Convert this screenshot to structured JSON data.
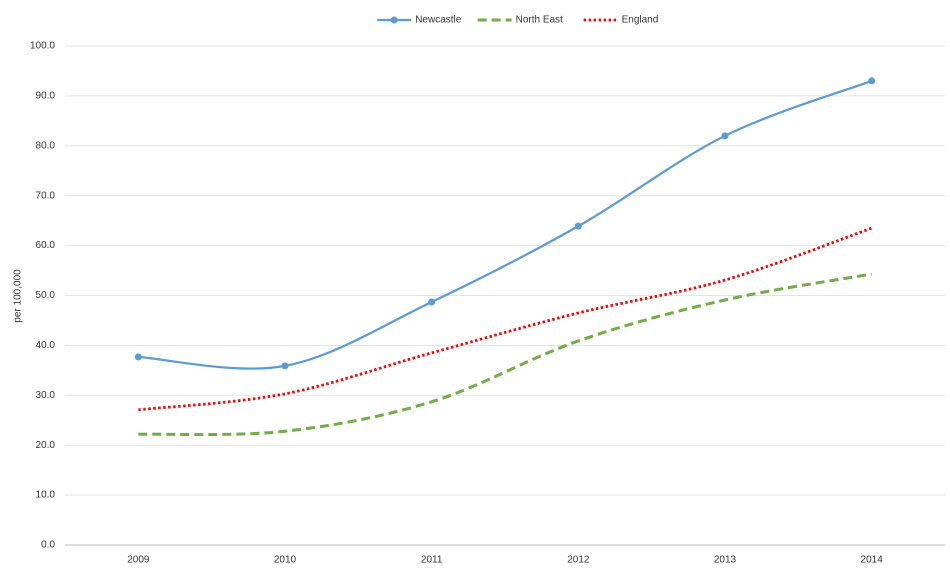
{
  "chart_data": {
    "type": "line",
    "smooth": true,
    "legend": "top",
    "grid": true,
    "ylabel": "per 100,000",
    "categories": [
      "2009",
      "2010",
      "2011",
      "2012",
      "2013",
      "2014"
    ],
    "series": [
      {
        "name": "Newcastle",
        "color": "#5b9bd5",
        "style": "solid",
        "marker": true,
        "values": [
          37.7,
          35.9,
          48.7,
          63.9,
          82.0,
          93.0
        ]
      },
      {
        "name": "North East",
        "color": "#70ad47",
        "style": "dashed",
        "marker": false,
        "values": [
          22.2,
          22.8,
          28.7,
          40.9,
          49.1,
          54.3
        ]
      },
      {
        "name": "England",
        "color": "#ff0000",
        "style": "dotted",
        "marker": false,
        "values": [
          27.1,
          30.3,
          38.5,
          46.5,
          53.1,
          63.5
        ]
      }
    ],
    "ylim": [
      0,
      100
    ],
    "yticks": [
      {
        "value": 0,
        "label": "0.0"
      },
      {
        "value": 10,
        "label": "10.0"
      },
      {
        "value": 20,
        "label": "20.0"
      },
      {
        "value": 30,
        "label": "30.0"
      },
      {
        "value": 40,
        "label": "40.0"
      },
      {
        "value": 50,
        "label": "50.0"
      },
      {
        "value": 60,
        "label": "60.0"
      },
      {
        "value": 70,
        "label": "70.0"
      },
      {
        "value": 80,
        "label": "80.0"
      },
      {
        "value": 90,
        "label": "90.0"
      },
      {
        "value": 100,
        "label": "100.0"
      }
    ]
  }
}
